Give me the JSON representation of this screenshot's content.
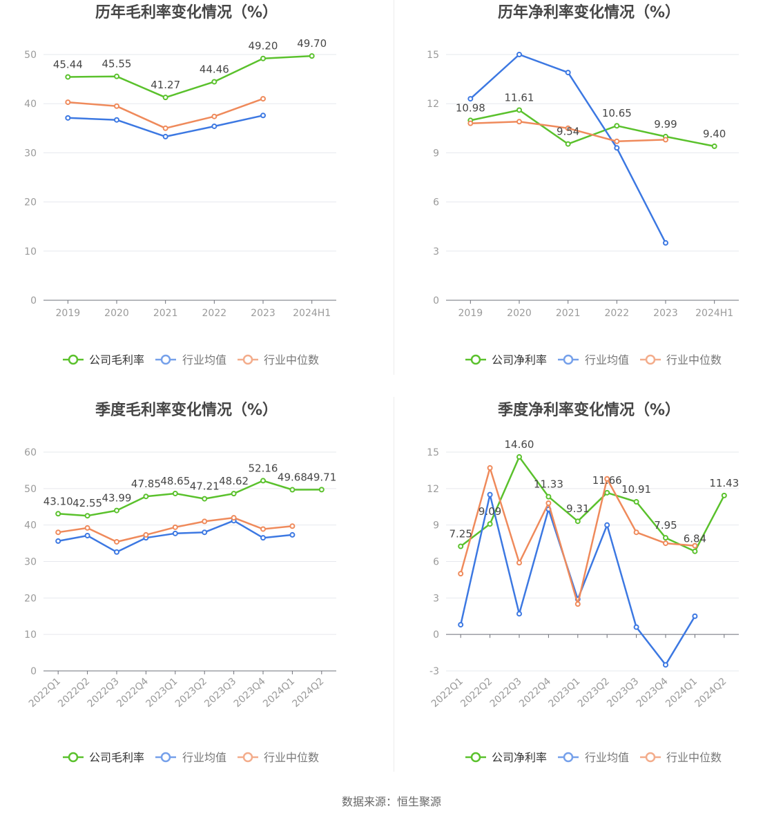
{
  "source_note": "数据来源：恒生聚源",
  "chart_data": [
    {
      "type": "line",
      "title": "历年毛利率变化情况（%）",
      "categories": [
        "2019",
        "2020",
        "2021",
        "2022",
        "2023",
        "2024H1"
      ],
      "ylim": [
        0,
        50
      ],
      "yticks": [
        0,
        10,
        20,
        30,
        40,
        50
      ],
      "grid": true,
      "legend": "bottom",
      "series": [
        {
          "name": "公司毛利率",
          "color": "#5ac12c",
          "values": [
            45.44,
            45.55,
            41.27,
            44.46,
            49.2,
            49.7
          ],
          "data_labels": [
            "45.44",
            "45.55",
            "41.27",
            "44.46",
            "49.20",
            "49.70"
          ]
        },
        {
          "name": "行业均值",
          "color": "#3c78e2",
          "values": [
            37.1,
            36.7,
            33.3,
            35.4,
            37.6,
            null
          ]
        },
        {
          "name": "行业中位数",
          "color": "#ef8a5b",
          "values": [
            40.3,
            39.5,
            35.0,
            37.4,
            41.0,
            null
          ]
        }
      ]
    },
    {
      "type": "line",
      "title": "历年净利率变化情况（%）",
      "categories": [
        "2019",
        "2020",
        "2021",
        "2022",
        "2023",
        "2024H1"
      ],
      "ylim": [
        0,
        15
      ],
      "yticks": [
        0,
        3,
        6,
        9,
        12,
        15
      ],
      "grid": true,
      "legend": "bottom",
      "series": [
        {
          "name": "公司净利率",
          "color": "#5ac12c",
          "values": [
            10.98,
            11.61,
            9.54,
            10.65,
            9.99,
            9.4
          ],
          "data_labels": [
            "10.98",
            "11.61",
            "9.54",
            "10.65",
            "9.99",
            "9.40"
          ]
        },
        {
          "name": "行业均值",
          "color": "#3c78e2",
          "values": [
            12.3,
            15.0,
            13.9,
            9.3,
            3.5,
            null
          ]
        },
        {
          "name": "行业中位数",
          "color": "#ef8a5b",
          "values": [
            10.8,
            10.9,
            10.5,
            9.7,
            9.8,
            null
          ]
        }
      ]
    },
    {
      "type": "line",
      "title": "季度毛利率变化情况（%）",
      "categories": [
        "2022Q1",
        "2022Q2",
        "2022Q3",
        "2022Q4",
        "2023Q1",
        "2023Q2",
        "2023Q3",
        "2023Q4",
        "2024Q1",
        "2024Q2"
      ],
      "ylim": [
        0,
        60
      ],
      "yticks": [
        0,
        10,
        20,
        30,
        40,
        50,
        60
      ],
      "grid": true,
      "legend": "bottom",
      "series": [
        {
          "name": "公司毛利率",
          "color": "#5ac12c",
          "values": [
            43.1,
            42.55,
            43.99,
            47.85,
            48.65,
            47.21,
            48.62,
            52.16,
            49.68,
            49.71
          ],
          "data_labels": [
            "43.10",
            "42.55",
            "43.99",
            "47.85",
            "48.65",
            "47.21",
            "48.62",
            "52.16",
            "49.68",
            "49.71"
          ]
        },
        {
          "name": "行业均值",
          "color": "#3c78e2",
          "values": [
            35.6,
            37.1,
            32.6,
            36.5,
            37.7,
            38.0,
            41.2,
            36.5,
            37.3,
            null
          ]
        },
        {
          "name": "行业中位数",
          "color": "#ef8a5b",
          "values": [
            38.0,
            39.2,
            35.4,
            37.3,
            39.4,
            41.0,
            42.0,
            38.9,
            39.7,
            null
          ]
        }
      ]
    },
    {
      "type": "line",
      "title": "季度净利率变化情况（%）",
      "categories": [
        "2022Q1",
        "2022Q2",
        "2022Q3",
        "2022Q4",
        "2023Q1",
        "2023Q2",
        "2023Q3",
        "2023Q4",
        "2024Q1",
        "2024Q2"
      ],
      "ylim": [
        -3,
        15
      ],
      "yticks": [
        -3,
        0,
        3,
        6,
        9,
        12,
        15
      ],
      "grid": true,
      "legend": "bottom",
      "series": [
        {
          "name": "公司净利率",
          "color": "#5ac12c",
          "values": [
            7.25,
            9.09,
            14.6,
            11.33,
            9.31,
            11.66,
            10.91,
            7.95,
            6.84,
            11.43
          ],
          "data_labels": [
            "7.25",
            "9.09",
            "14.60",
            "11.33",
            "9.31",
            "11.66",
            "10.91",
            "7.95",
            "6.84",
            "11.43"
          ]
        },
        {
          "name": "行业均值",
          "color": "#3c78e2",
          "values": [
            0.8,
            11.5,
            1.7,
            10.3,
            2.9,
            9.0,
            0.6,
            -2.5,
            1.5,
            null
          ]
        },
        {
          "name": "行业中位数",
          "color": "#ef8a5b",
          "values": [
            5.0,
            13.7,
            5.9,
            10.8,
            2.5,
            12.8,
            8.4,
            7.5,
            7.3,
            null
          ]
        }
      ]
    }
  ]
}
